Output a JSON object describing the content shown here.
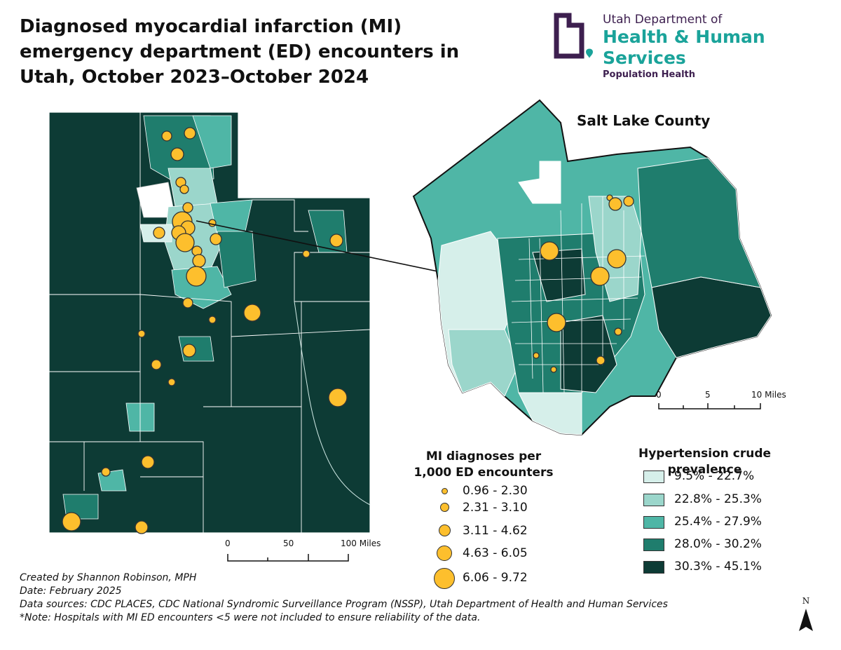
{
  "title": "Diagnosed myocardial infarction (MI) emergency department (ED) encounters in Utah, October 2023–October 2024",
  "logo": {
    "line1": "Utah Department of",
    "line2": "Health & Human Services",
    "line3": "Population Health",
    "colors": {
      "purple": "#3d1f4f",
      "teal": "#1aa39a"
    }
  },
  "inset_title": "Salt Lake County",
  "mi_legend": {
    "title": "MI diagnoses per 1,000 ED encounters",
    "items": [
      {
        "label": "0.96 - 2.30",
        "size": 1
      },
      {
        "label": "2.31 - 3.10",
        "size": 2
      },
      {
        "label": "3.11 - 4.62",
        "size": 3
      },
      {
        "label": "4.63 - 6.05",
        "size": 4
      },
      {
        "label": "6.06 - 9.72",
        "size": 5
      }
    ],
    "symbol_color": "#fdbf2d"
  },
  "htn_legend": {
    "title": "Hypertension crude prevalence",
    "items": [
      {
        "label": "9.5% - 22.7%",
        "color": "#d6efea"
      },
      {
        "label": "22.8% - 25.3%",
        "color": "#9bd6cb"
      },
      {
        "label": "25.4% - 27.9%",
        "color": "#4fb6a6"
      },
      {
        "label": "28.0% - 30.2%",
        "color": "#1f7d6d"
      },
      {
        "label": "30.3% - 45.1%",
        "color": "#0d3b35"
      }
    ]
  },
  "scale_utah": {
    "labels": [
      "0",
      "50",
      "100 Miles"
    ]
  },
  "scale_slc": {
    "labels": [
      "0",
      "5",
      "10 Miles"
    ]
  },
  "north_label": "N",
  "credits": [
    "Created by Shannon Robinson, MPH",
    "Date: February 2025",
    "Data sources: CDC PLACES, CDC National Syndromic Surveillance Program (NSSP), Utah Department of Health and Human Services",
    "*Note: Hospitals with MI ED encounters <5 were not included to ensure reliability of the data."
  ]
}
